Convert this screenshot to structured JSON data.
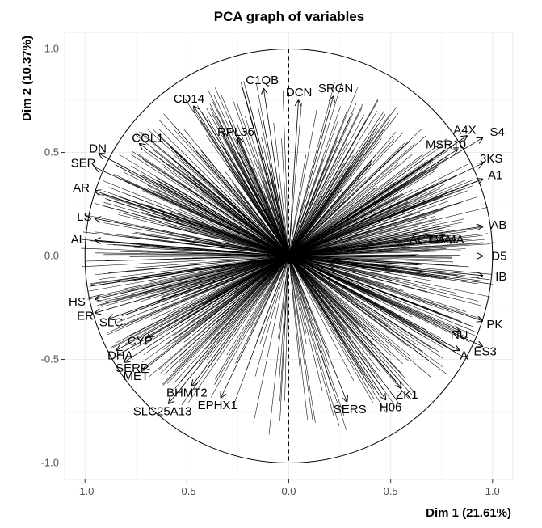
{
  "chart_data": {
    "type": "scatter",
    "title": "PCA graph of variables",
    "xlabel": "Dim 1 (21.61%)",
    "ylabel": "Dim 2 (10.37%)",
    "xlim": [
      -1.1,
      1.1
    ],
    "ylim": [
      -1.08,
      1.08
    ],
    "x_ticks": [
      -1.0,
      -0.5,
      0.0,
      0.5,
      1.0
    ],
    "y_ticks": [
      -1.0,
      -0.5,
      0.0,
      0.5,
      1.0
    ],
    "x_tick_labels": [
      "-1.0",
      "-0.5",
      "0.0",
      "0.5",
      "1.0"
    ],
    "y_tick_labels": [
      "-1.0",
      "-0.5",
      "0.0",
      "0.5",
      "1.0"
    ],
    "grid": true,
    "correlation_circle": true,
    "reference_lines": "dashed lines at x = 0 and y = 0",
    "arrow_color": "#000000",
    "variables": [
      {
        "name": "C1QB",
        "x": -0.13,
        "y": 0.85
      },
      {
        "name": "DCN",
        "x": 0.05,
        "y": 0.79
      },
      {
        "name": "SRGN",
        "x": 0.23,
        "y": 0.81
      },
      {
        "name": "CD14",
        "x": -0.49,
        "y": 0.76
      },
      {
        "name": "RPL36",
        "x": -0.26,
        "y": 0.6
      },
      {
        "name": "COL1",
        "x": -0.77,
        "y": 0.57
      },
      {
        "name": "DN",
        "x": -0.98,
        "y": 0.52
      },
      {
        "name": "SER",
        "x": -1.07,
        "y": 0.45
      },
      {
        "name": "A4X",
        "x": 0.92,
        "y": 0.61
      },
      {
        "name": "MSR10",
        "x": 0.87,
        "y": 0.54
      },
      {
        "name": "3KS",
        "x": 1.05,
        "y": 0.47
      },
      {
        "name": "CTMA",
        "x": 0.86,
        "y": 0.08
      },
      {
        "name": "S4",
        "x": 1.06,
        "y": 0.6
      },
      {
        "name": "ACTMA",
        "x": 0.8,
        "y": 0.08
      },
      {
        "name": "SLC25A13",
        "x": -0.62,
        "y": -0.75
      },
      {
        "name": "EPHX1",
        "x": -0.35,
        "y": -0.72
      },
      {
        "name": "BHMT2",
        "x": -0.5,
        "y": -0.66
      },
      {
        "name": "MET",
        "x": -0.75,
        "y": -0.58
      },
      {
        "name": "SERP",
        "x": -0.85,
        "y": -0.54
      },
      {
        "name": "DHA",
        "x": -0.89,
        "y": -0.48
      },
      {
        "name": "CYP",
        "x": -0.73,
        "y": -0.41
      },
      {
        "name": "ER",
        "x": -1.04,
        "y": -0.29
      },
      {
        "name": "HS",
        "x": -1.08,
        "y": -0.22
      },
      {
        "name": "SLC",
        "x": -0.93,
        "y": -0.32
      },
      {
        "name": "AL",
        "x": -1.07,
        "y": 0.08
      },
      {
        "name": "ZK1",
        "x": 0.58,
        "y": -0.67
      },
      {
        "name": "H06",
        "x": 0.5,
        "y": -0.73
      },
      {
        "name": "SERS",
        "x": 0.3,
        "y": -0.74
      },
      {
        "name": "A",
        "x": 0.88,
        "y": -0.48
      },
      {
        "name": "ES3",
        "x": 1.02,
        "y": -0.46
      },
      {
        "name": "PK",
        "x": 1.05,
        "y": -0.33
      },
      {
        "name": "NU",
        "x": 0.88,
        "y": -0.38
      },
      {
        "name": "AB",
        "x": 1.07,
        "y": 0.15
      },
      {
        "name": "A1",
        "x": 1.05,
        "y": 0.39
      },
      {
        "name": "IB",
        "x": 1.07,
        "y": -0.1
      },
      {
        "name": "D5",
        "x": 1.07,
        "y": 0.0
      },
      {
        "name": "AR",
        "x": -1.06,
        "y": 0.33
      },
      {
        "name": "LS",
        "x": -1.04,
        "y": 0.19
      }
    ],
    "bulk_arrows": 700,
    "bulk_arrows_note": "hundreds of unlabeled overlapping arrows fill the circle"
  }
}
